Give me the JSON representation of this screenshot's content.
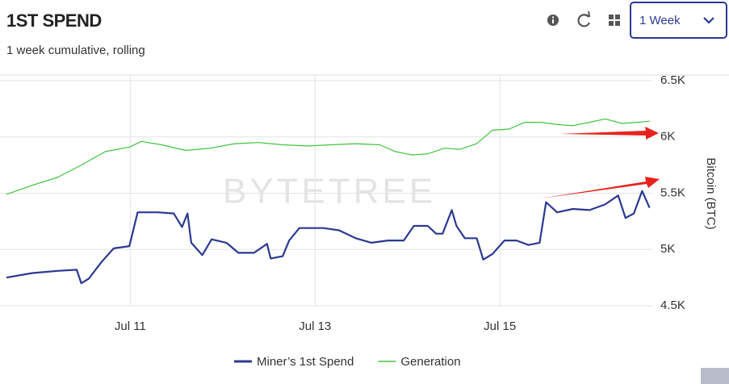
{
  "header": {
    "title": "1ST SPEND",
    "subtitle": "1 week cumulative, rolling",
    "range_select": "1 Week"
  },
  "chart_data": {
    "type": "line",
    "watermark": "BYTETREE",
    "ylabel": "Bitcoin (BTC)",
    "xlim": [
      9.66,
      16.65
    ],
    "xticks": [
      {
        "value": 11,
        "label": "Jul 11"
      },
      {
        "value": 13,
        "label": "Jul 13"
      },
      {
        "value": 15,
        "label": "Jul 15"
      }
    ],
    "ylim": [
      4500,
      6500
    ],
    "yticks": [
      {
        "value": 4500,
        "label": "4.5K"
      },
      {
        "value": 5000,
        "label": "5K"
      },
      {
        "value": 5500,
        "label": "5.5K"
      },
      {
        "value": 6000,
        "label": "6K"
      },
      {
        "value": 6500,
        "label": "6.5K"
      }
    ],
    "grid": true,
    "legend": "bottom",
    "series": [
      {
        "name": "Miner’s 1st Spend",
        "color": "#2b3990",
        "x": [
          9.66,
          9.94,
          10.21,
          10.42,
          10.47,
          10.55,
          10.69,
          10.82,
          10.99,
          11.08,
          11.3,
          11.47,
          11.56,
          11.62,
          11.66,
          11.78,
          11.88,
          12.04,
          12.17,
          12.34,
          12.48,
          12.52,
          12.65,
          12.72,
          12.83,
          13.09,
          13.26,
          13.44,
          13.61,
          13.79,
          13.96,
          14.07,
          14.22,
          14.31,
          14.38,
          14.48,
          14.53,
          14.62,
          14.75,
          14.82,
          14.92,
          15.05,
          15.18,
          15.31,
          15.43,
          15.5,
          15.62,
          15.79,
          15.97,
          16.14,
          16.28,
          16.36,
          16.45,
          16.54,
          16.62
        ],
        "values": [
          4750,
          4790,
          4810,
          4820,
          4700,
          4740,
          4890,
          5010,
          5030,
          5330,
          5330,
          5320,
          5200,
          5320,
          5060,
          4950,
          5090,
          5060,
          4970,
          4970,
          5050,
          4920,
          4940,
          5080,
          5190,
          5190,
          5170,
          5100,
          5060,
          5080,
          5080,
          5210,
          5210,
          5140,
          5140,
          5350,
          5210,
          5100,
          5100,
          4910,
          4960,
          5080,
          5080,
          5040,
          5060,
          5420,
          5330,
          5360,
          5350,
          5400,
          5480,
          5280,
          5320,
          5520,
          5370
        ]
      },
      {
        "name": "Generation",
        "color": "#3ec43e",
        "x": [
          9.66,
          9.94,
          10.21,
          10.47,
          10.73,
          10.99,
          11.12,
          11.34,
          11.6,
          11.86,
          12.13,
          12.39,
          12.65,
          12.91,
          13.17,
          13.44,
          13.7,
          13.87,
          14.05,
          14.22,
          14.4,
          14.57,
          14.75,
          14.92,
          15.1,
          15.27,
          15.45,
          15.62,
          15.79,
          15.97,
          16.14,
          16.32,
          16.49,
          16.62
        ],
        "values": [
          5490,
          5570,
          5640,
          5750,
          5870,
          5910,
          5960,
          5930,
          5880,
          5900,
          5940,
          5950,
          5930,
          5920,
          5930,
          5940,
          5930,
          5870,
          5840,
          5850,
          5900,
          5890,
          5940,
          6060,
          6070,
          6130,
          6130,
          6110,
          6100,
          6130,
          6160,
          6120,
          6130,
          6140
        ]
      }
    ]
  }
}
